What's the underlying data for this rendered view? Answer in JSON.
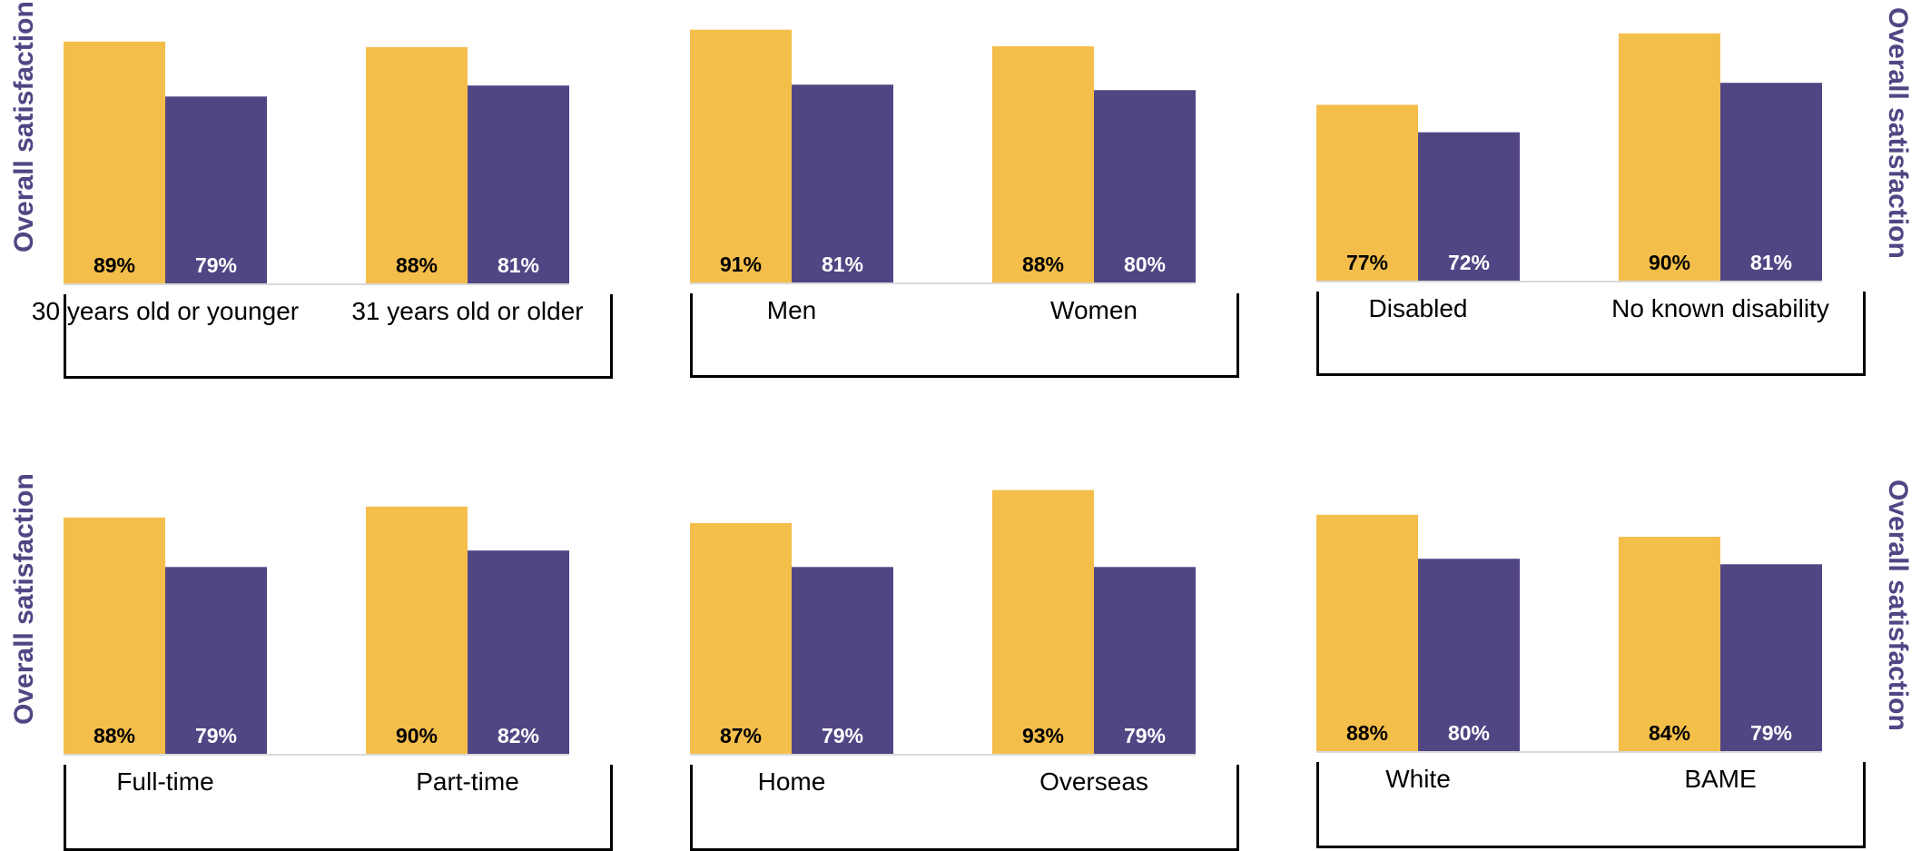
{
  "side_label": "Overall satisfaction",
  "colors": {
    "series_a": "#F4BE4B",
    "series_b": "#524584",
    "axis": "#d9d9d9"
  },
  "chart_data": [
    {
      "type": "bar",
      "categories": [
        "30 years old or younger",
        "31 years old or older"
      ],
      "series": [
        {
          "values": [
            89,
            88
          ]
        },
        {
          "values": [
            79,
            81
          ]
        }
      ],
      "value_labels": [
        [
          "89%",
          "88%"
        ],
        [
          "79%",
          "81%"
        ]
      ]
    },
    {
      "type": "bar",
      "categories": [
        "Men",
        "Women"
      ],
      "series": [
        {
          "values": [
            91,
            88
          ]
        },
        {
          "values": [
            81,
            80
          ]
        }
      ],
      "value_labels": [
        [
          "91%",
          "88%"
        ],
        [
          "81%",
          "80%"
        ]
      ]
    },
    {
      "type": "bar",
      "categories": [
        "Disabled",
        "No known disability"
      ],
      "series": [
        {
          "values": [
            77,
            90
          ]
        },
        {
          "values": [
            72,
            81
          ]
        }
      ],
      "value_labels": [
        [
          "77%",
          "90%"
        ],
        [
          "72%",
          "81%"
        ]
      ]
    },
    {
      "type": "bar",
      "categories": [
        "Full-time",
        "Part-time"
      ],
      "series": [
        {
          "values": [
            88,
            90
          ]
        },
        {
          "values": [
            79,
            82
          ]
        }
      ],
      "value_labels": [
        [
          "88%",
          "90%"
        ],
        [
          "79%",
          "82%"
        ]
      ]
    },
    {
      "type": "bar",
      "categories": [
        "Home",
        "Overseas"
      ],
      "series": [
        {
          "values": [
            87,
            93
          ]
        },
        {
          "values": [
            79,
            79
          ]
        }
      ],
      "value_labels": [
        [
          "87%",
          "93%"
        ],
        [
          "79%",
          "79%"
        ]
      ]
    },
    {
      "type": "bar",
      "categories": [
        "White",
        "BAME"
      ],
      "series": [
        {
          "values": [
            88,
            84
          ]
        },
        {
          "values": [
            80,
            79
          ]
        }
      ],
      "value_labels": [
        [
          "88%",
          "84%"
        ],
        [
          "80%",
          "79%"
        ]
      ]
    }
  ]
}
